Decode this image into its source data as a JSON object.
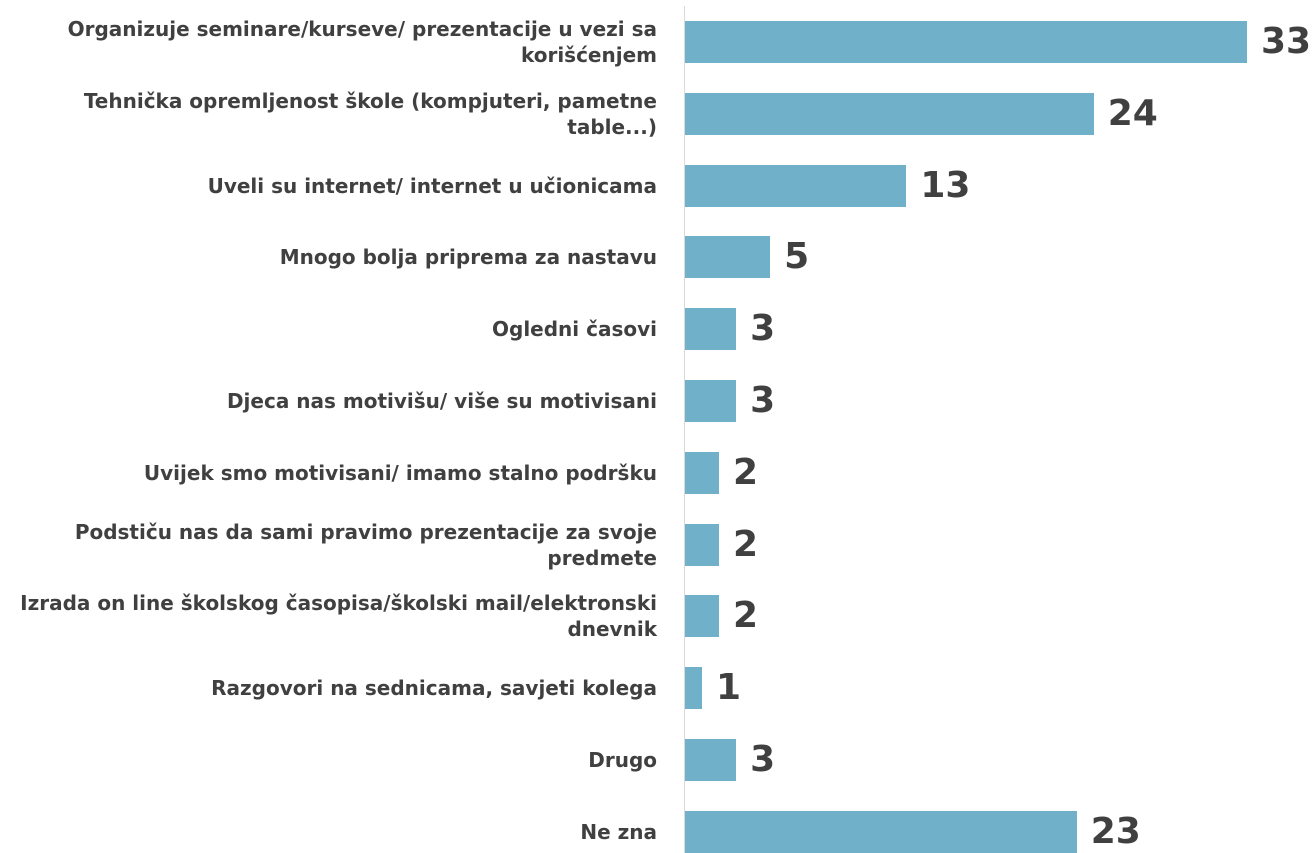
{
  "chart_data": {
    "type": "bar",
    "orientation": "horizontal",
    "categories": [
      "Organizuje seminare/kurseve/ prezentacije u vezi sa korišćenjem",
      "Tehnička opremljenost škole (kompjuteri, pametne table...)",
      "Uveli su internet/ internet u učionicama",
      "Mnogo bolja priprema za nastavu",
      "Ogledni časovi",
      "Djeca nas motivišu/ više su motivisani",
      "Uvijek smo motivisani/ imamo stalno podršku",
      "Podstiču nas da sami pravimo prezentacije za svoje predmete",
      "Izrada on line školskog časopisa/školski mail/elektronski dnevnik",
      "Razgovori na sednicama, savjeti kolega",
      "Drugo",
      "Ne zna"
    ],
    "values": [
      33,
      24,
      13,
      5,
      3,
      3,
      2,
      2,
      2,
      1,
      3,
      23
    ],
    "color": "#70b0c8"
  }
}
